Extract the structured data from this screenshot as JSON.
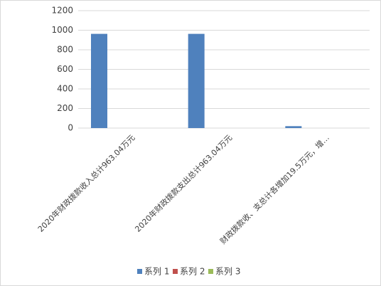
{
  "chart_data": {
    "type": "bar",
    "categories": [
      "2020年财政拨款收入总计963.04万元",
      "2020年财政拨款支出总计963.04万元",
      "财政拨款收、支总计各增加19.5万元，增…"
    ],
    "series": [
      {
        "name": "系列 1",
        "color": "#4f81bd",
        "values": [
          963.04,
          963.04,
          19.5
        ]
      },
      {
        "name": "系列 2",
        "color": "#c0504d",
        "values": [
          null,
          null,
          null
        ]
      },
      {
        "name": "系列 3",
        "color": "#9bbb59",
        "values": [
          null,
          null,
          null
        ]
      }
    ],
    "ylim": [
      0,
      1200
    ],
    "yticks": [
      0,
      200,
      400,
      600,
      800,
      1000,
      1200
    ],
    "grid": true,
    "legend": "bottom"
  }
}
